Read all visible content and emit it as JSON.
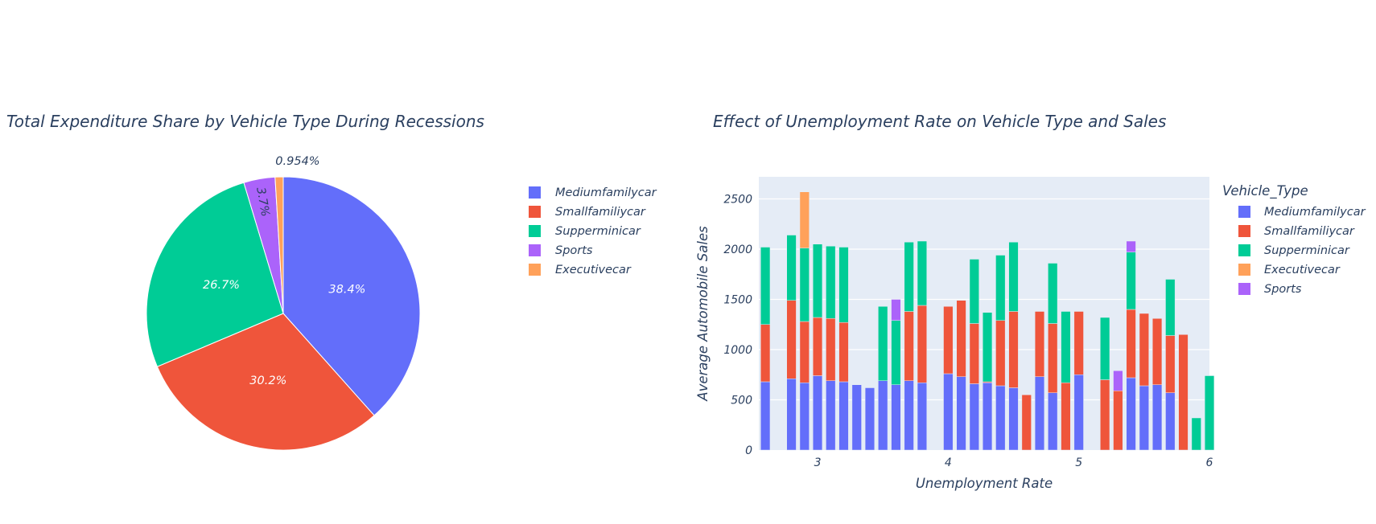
{
  "colors": {
    "Mediumfamilycar": "#636efa",
    "Smallfamiliycar": "#ef553b",
    "Supperminicar": "#00cc96",
    "Sports": "#ab63fa",
    "Executivecar": "#ffa15a"
  },
  "chart_data": [
    {
      "type": "pie",
      "title": "Total Expenditure Share by Vehicle Type During Recessions",
      "legend_position": "right",
      "labels": [
        "Mediumfamilycar",
        "Smallfamiliycar",
        "Supperminicar",
        "Sports",
        "Executivecar"
      ],
      "values": [
        38.4,
        30.2,
        26.7,
        3.7,
        0.954
      ],
      "text_labels": [
        "38.4%",
        "30.2%",
        "26.7%",
        "3.7%",
        "0.954%"
      ]
    },
    {
      "type": "bar",
      "barmode": "stack",
      "title": "Effect of Unemployment Rate on Vehicle Type and Sales",
      "xlabel": "Unemployment Rate",
      "ylabel": "Average Automobile Sales",
      "legend_title": "Vehicle_Type",
      "legend_position": "right",
      "xlim": [
        2.55,
        6.0
      ],
      "ylim": [
        0,
        2720
      ],
      "xticks": [
        3,
        4,
        5,
        6
      ],
      "yticks": [
        0,
        500,
        1000,
        1500,
        2000,
        2500
      ],
      "bar_width": 0.072,
      "series": [
        {
          "name": "Mediumfamilycar",
          "x": [
            2.6,
            2.8,
            2.9,
            3.0,
            3.1,
            3.2,
            3.3,
            3.4,
            3.5,
            3.6,
            3.7,
            3.8,
            4.0,
            4.1,
            4.2,
            4.3,
            4.4,
            4.5,
            4.7,
            4.8,
            5.0,
            5.5,
            5.6,
            5.7,
            5.4
          ],
          "y": [
            680,
            710,
            670,
            740,
            690,
            680,
            650,
            620,
            690,
            650,
            690,
            670,
            760,
            730,
            660,
            670,
            640,
            620,
            730,
            570,
            750,
            640,
            650,
            570,
            720
          ]
        },
        {
          "name": "Smallfamiliycar",
          "x": [
            2.6,
            2.8,
            2.9,
            3.0,
            3.1,
            3.2,
            3.7,
            3.8,
            4.0,
            4.1,
            4.2,
            4.3,
            4.4,
            4.5,
            4.6,
            4.7,
            4.8,
            4.9,
            5.0,
            5.2,
            5.3,
            5.4,
            5.5,
            5.6,
            5.7,
            5.8
          ],
          "y": [
            570,
            780,
            610,
            580,
            620,
            590,
            690,
            770,
            670,
            760,
            600,
            10,
            650,
            760,
            550,
            650,
            690,
            670,
            630,
            700,
            590,
            680,
            720,
            660,
            570,
            1150
          ]
        },
        {
          "name": "Supperminicar",
          "x": [
            2.6,
            2.8,
            2.9,
            3.0,
            3.1,
            3.2,
            3.5,
            3.6,
            3.7,
            3.8,
            4.2,
            4.3,
            4.4,
            4.5,
            4.8,
            4.9,
            5.2,
            5.4,
            5.7,
            5.9,
            6.0
          ],
          "y": [
            770,
            650,
            730,
            730,
            720,
            750,
            740,
            640,
            690,
            640,
            640,
            690,
            650,
            690,
            600,
            710,
            620,
            570,
            560,
            320,
            740
          ]
        },
        {
          "name": "Executivecar",
          "x": [
            2.9
          ],
          "y": [
            560
          ]
        },
        {
          "name": "Sports",
          "x": [
            3.6,
            5.3,
            5.4
          ],
          "y": [
            210,
            200,
            110
          ]
        }
      ]
    }
  ]
}
